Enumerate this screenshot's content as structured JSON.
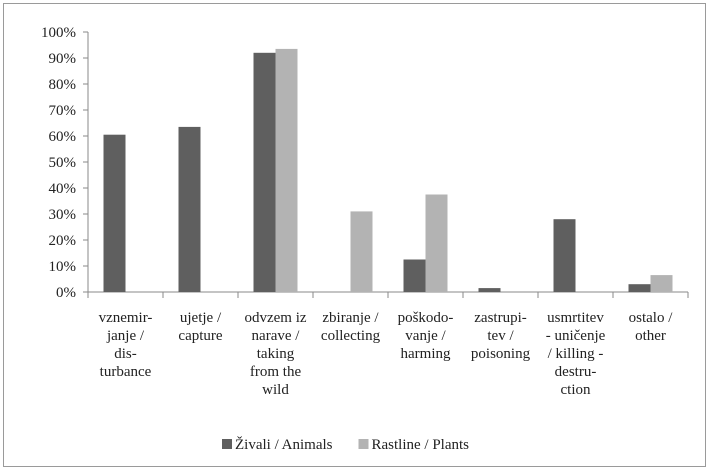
{
  "chart_data": {
    "type": "bar",
    "categories": [
      "vznemir-\njanje /\ndis-\nturbance",
      "ujetje /\ncapture",
      "odvzem iz\nnarave /\ntaking\nfrom the\nwild",
      "zbiranje /\ncollecting",
      "poškodo-\nvanje /\nharming",
      "zastrupi-\ntev /\npoisoning",
      "usmrtitev\n- uničenje\n/ killing -\ndestru-\nction",
      "ostalo /\nother"
    ],
    "series": [
      {
        "name": "Živali / Animals",
        "color": "#5f5f5f",
        "values": [
          60.5,
          63.5,
          92,
          0,
          12.5,
          1.5,
          28,
          3
        ]
      },
      {
        "name": "Rastline / Plants",
        "color": "#b3b3b3",
        "values": [
          0,
          0,
          93.5,
          31,
          37.5,
          0,
          0,
          6.5
        ]
      }
    ],
    "ylim": [
      0,
      100
    ],
    "yticks": [
      {
        "value": 0,
        "label": "0%"
      },
      {
        "value": 10,
        "label": "10%"
      },
      {
        "value": 20,
        "label": "20%"
      },
      {
        "value": 30,
        "label": "30%"
      },
      {
        "value": 40,
        "label": "40%"
      },
      {
        "value": 50,
        "label": "50%"
      },
      {
        "value": 60,
        "label": "60%"
      },
      {
        "value": 70,
        "label": "70%"
      },
      {
        "value": 80,
        "label": "80%"
      },
      {
        "value": 90,
        "label": "90%"
      },
      {
        "value": 100,
        "label": "100%"
      }
    ],
    "grid": false,
    "legend": "bottom"
  }
}
